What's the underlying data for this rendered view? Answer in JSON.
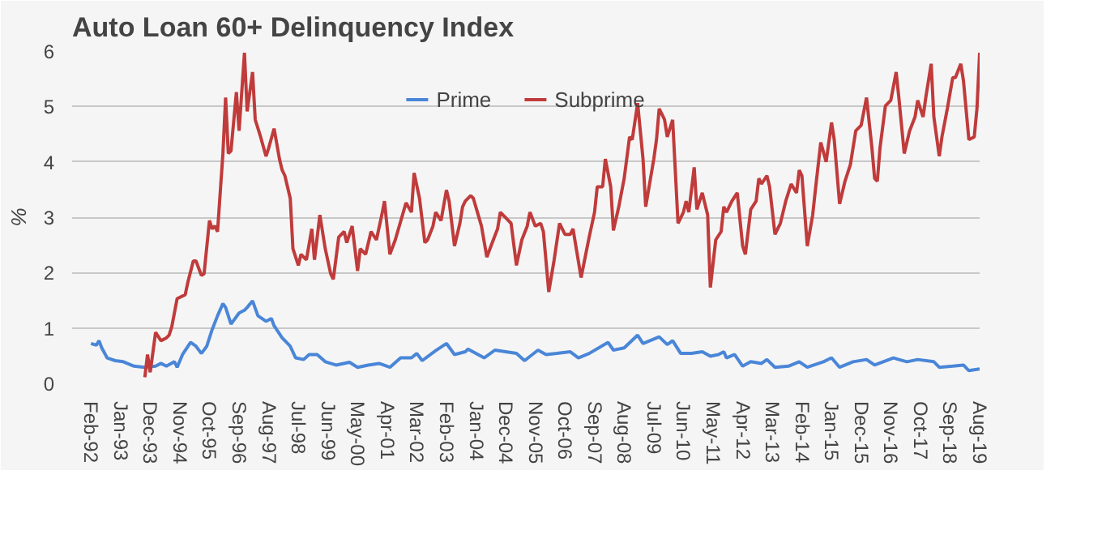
{
  "chart_data": {
    "type": "line",
    "title": "Auto Loan 60+ Delinquency Index",
    "ylabel": "%",
    "xlim": [
      "1991-07",
      "2019-08"
    ],
    "ylim": [
      0,
      6
    ],
    "yticks": [
      0,
      1,
      2,
      3,
      4,
      5,
      6
    ],
    "xticks": [
      {
        "value": "1992-02",
        "label": "Feb-92"
      },
      {
        "value": "1993-01",
        "label": "Jan-93"
      },
      {
        "value": "1993-12",
        "label": "Dec-93"
      },
      {
        "value": "1994-11",
        "label": "Nov-94"
      },
      {
        "value": "1995-10",
        "label": "Oct-95"
      },
      {
        "value": "1996-09",
        "label": "Sep-96"
      },
      {
        "value": "1997-08",
        "label": "Aug-97"
      },
      {
        "value": "1998-07",
        "label": "Jul-98"
      },
      {
        "value": "1999-06",
        "label": "Jun-99"
      },
      {
        "value": "2000-05",
        "label": "May-00"
      },
      {
        "value": "2001-04",
        "label": "Apr-01"
      },
      {
        "value": "2002-03",
        "label": "Mar-02"
      },
      {
        "value": "2003-02",
        "label": "Feb-03"
      },
      {
        "value": "2004-01",
        "label": "Jan-04"
      },
      {
        "value": "2004-12",
        "label": "Dec-04"
      },
      {
        "value": "2005-11",
        "label": "Nov-05"
      },
      {
        "value": "2006-10",
        "label": "Oct-06"
      },
      {
        "value": "2007-09",
        "label": "Sep-07"
      },
      {
        "value": "2008-08",
        "label": "Aug-08"
      },
      {
        "value": "2009-07",
        "label": "Jul-09"
      },
      {
        "value": "2010-06",
        "label": "Jun-10"
      },
      {
        "value": "2011-05",
        "label": "May-11"
      },
      {
        "value": "2012-04",
        "label": "Apr-12"
      },
      {
        "value": "2013-03",
        "label": "Mar-13"
      },
      {
        "value": "2014-02",
        "label": "Feb-14"
      },
      {
        "value": "2015-01",
        "label": "Jan-15"
      },
      {
        "value": "2015-12",
        "label": "Dec-15"
      },
      {
        "value": "2016-11",
        "label": "Nov-16"
      },
      {
        "value": "2017-10",
        "label": "Oct-17"
      },
      {
        "value": "2018-09",
        "label": "Sep-18"
      },
      {
        "value": "2019-08",
        "label": "Aug-19"
      }
    ],
    "grid": "y",
    "legend": "top",
    "marker": "none",
    "line_style": "solid",
    "series": [
      {
        "name": "Prime",
        "color": "#4a86d8",
        "x": [
          "1992-02",
          "1992-04",
          "1992-05",
          "1992-06",
          "1992-08",
          "1992-11",
          "1993-02",
          "1993-06",
          "1993-10",
          "1994-02",
          "1994-04",
          "1994-06",
          "1994-09",
          "1994-10",
          "1994-12",
          "1995-03",
          "1995-05",
          "1995-07",
          "1995-09",
          "1995-11",
          "1996-01",
          "1996-03",
          "1996-04",
          "1996-06",
          "1996-09",
          "1996-11",
          "1996-12",
          "1997-02",
          "1997-04",
          "1997-07",
          "1997-09",
          "1997-10",
          "1998-01",
          "1998-04",
          "1998-06",
          "1998-09",
          "1998-11",
          "1999-02",
          "1999-05",
          "1999-09",
          "2000-02",
          "2000-05",
          "2000-09",
          "2001-01",
          "2001-05",
          "2001-09",
          "2002-01",
          "2002-03",
          "2002-05",
          "2002-10",
          "2003-02",
          "2003-05",
          "2003-09",
          "2003-10",
          "2004-04",
          "2004-08",
          "2004-12",
          "2005-04",
          "2005-07",
          "2005-12",
          "2006-03",
          "2006-07",
          "2006-12",
          "2007-03",
          "2007-07",
          "2008-02",
          "2008-04",
          "2008-08",
          "2009-01",
          "2009-03",
          "2009-09",
          "2009-12",
          "2010-02",
          "2010-05",
          "2010-09",
          "2011-01",
          "2011-04",
          "2011-07",
          "2011-09",
          "2011-10",
          "2012-01",
          "2012-04",
          "2012-07",
          "2012-11",
          "2013-01",
          "2013-04",
          "2013-09",
          "2014-01",
          "2014-04",
          "2014-10",
          "2015-01",
          "2015-04",
          "2015-09",
          "2016-02",
          "2016-05",
          "2016-12",
          "2017-02",
          "2017-05",
          "2017-09",
          "2018-03",
          "2018-05",
          "2018-10",
          "2019-02",
          "2019-04",
          "2019-08"
        ],
        "values": [
          0.72,
          0.69,
          0.77,
          0.64,
          0.46,
          0.41,
          0.39,
          0.31,
          0.29,
          0.31,
          0.36,
          0.31,
          0.39,
          0.29,
          0.52,
          0.74,
          0.67,
          0.54,
          0.67,
          0.97,
          1.22,
          1.44,
          1.37,
          1.07,
          1.27,
          1.32,
          1.37,
          1.49,
          1.22,
          1.12,
          1.17,
          1.04,
          0.82,
          0.67,
          0.46,
          0.43,
          0.52,
          0.52,
          0.39,
          0.33,
          0.38,
          0.29,
          0.33,
          0.36,
          0.29,
          0.46,
          0.46,
          0.54,
          0.41,
          0.59,
          0.72,
          0.52,
          0.57,
          0.62,
          0.46,
          0.6,
          0.57,
          0.54,
          0.41,
          0.6,
          0.52,
          0.54,
          0.57,
          0.46,
          0.54,
          0.74,
          0.6,
          0.64,
          0.87,
          0.72,
          0.84,
          0.7,
          0.77,
          0.54,
          0.54,
          0.57,
          0.49,
          0.52,
          0.57,
          0.46,
          0.52,
          0.31,
          0.39,
          0.36,
          0.43,
          0.29,
          0.31,
          0.39,
          0.29,
          0.39,
          0.46,
          0.29,
          0.39,
          0.43,
          0.33,
          0.46,
          0.43,
          0.39,
          0.43,
          0.39,
          0.29,
          0.31,
          0.33,
          0.23,
          0.26
        ]
      },
      {
        "name": "Subprime",
        "color": "#c03b3b",
        "x": [
          "1993-10",
          "1993-11",
          "1993-12",
          "1994-02",
          "1994-04",
          "1994-06",
          "1994-07",
          "1994-08",
          "1994-10",
          "1995-01",
          "1995-02",
          "1995-04",
          "1995-05",
          "1995-07",
          "1995-08",
          "1995-10",
          "1995-11",
          "1995-12",
          "1996-01",
          "1996-03",
          "1996-04",
          "1996-05",
          "1996-06",
          "1996-08",
          "1996-09",
          "1996-11",
          "1996-12",
          "1997-02",
          "1997-03",
          "1997-05",
          "1997-07",
          "1997-08",
          "1997-10",
          "1997-12",
          "1998-01",
          "1998-02",
          "1998-04",
          "1998-05",
          "1998-07",
          "1998-08",
          "1998-10",
          "1998-12",
          "1999-01",
          "1999-03",
          "1999-05",
          "1999-07",
          "1999-08",
          "1999-10",
          "1999-12",
          "2000-01",
          "2000-03",
          "2000-05",
          "2000-06",
          "2000-08",
          "2000-10",
          "2000-12",
          "2001-02",
          "2001-03",
          "2001-05",
          "2001-07",
          "2001-11",
          "2002-01",
          "2002-02",
          "2002-04",
          "2002-06",
          "2002-07",
          "2002-09",
          "2002-10",
          "2002-12",
          "2003-02",
          "2003-03",
          "2003-05",
          "2003-07",
          "2003-08",
          "2003-09",
          "2003-11",
          "2003-12",
          "2004-03",
          "2004-05",
          "2004-07",
          "2004-09",
          "2004-10",
          "2004-12",
          "2005-02",
          "2005-04",
          "2005-06",
          "2005-08",
          "2005-09",
          "2005-11",
          "2006-01",
          "2006-02",
          "2006-04",
          "2006-06",
          "2006-08",
          "2006-10",
          "2006-12",
          "2007-01",
          "2007-04",
          "2007-07",
          "2007-09",
          "2007-10",
          "2007-12",
          "2008-01",
          "2008-03",
          "2008-04",
          "2008-06",
          "2008-08",
          "2008-10",
          "2008-11",
          "2009-01",
          "2009-03",
          "2009-04",
          "2009-07",
          "2009-08",
          "2009-09",
          "2009-11",
          "2009-12",
          "2010-02",
          "2010-04",
          "2010-06",
          "2010-07",
          "2010-08",
          "2010-10",
          "2010-11",
          "2011-01",
          "2011-03",
          "2011-04",
          "2011-06",
          "2011-08",
          "2011-09",
          "2011-10",
          "2011-12",
          "2012-02",
          "2012-04",
          "2012-05",
          "2012-07",
          "2012-09",
          "2012-10",
          "2012-11",
          "2013-01",
          "2013-02",
          "2013-04",
          "2013-06",
          "2013-08",
          "2013-10",
          "2013-12",
          "2014-01",
          "2014-02",
          "2014-04",
          "2014-06",
          "2014-07",
          "2014-09",
          "2014-11",
          "2015-01",
          "2015-02",
          "2015-04",
          "2015-06",
          "2015-08",
          "2015-10",
          "2015-12",
          "2016-02",
          "2016-04",
          "2016-05",
          "2016-06",
          "2016-07",
          "2016-09",
          "2016-11",
          "2017-01",
          "2017-02",
          "2017-04",
          "2017-06",
          "2017-08",
          "2017-09",
          "2017-11",
          "2017-12",
          "2018-02",
          "2018-03",
          "2018-05",
          "2018-06",
          "2018-08",
          "2018-10",
          "2018-11",
          "2019-01",
          "2019-02",
          "2019-04",
          "2019-06",
          "2019-07",
          "2019-08"
        ],
        "values": [
          0.11,
          0.52,
          0.2,
          0.92,
          0.77,
          0.82,
          0.87,
          1.02,
          1.53,
          1.6,
          1.83,
          2.21,
          2.21,
          1.95,
          1.98,
          2.94,
          2.79,
          2.84,
          2.74,
          4.15,
          5.16,
          4.15,
          4.2,
          5.26,
          4.56,
          5.97,
          4.91,
          5.62,
          4.76,
          4.45,
          4.1,
          4.25,
          4.6,
          4.05,
          3.85,
          3.75,
          3.34,
          2.43,
          2.13,
          2.33,
          2.23,
          2.79,
          2.23,
          3.04,
          2.43,
          1.98,
          1.88,
          2.64,
          2.74,
          2.54,
          2.84,
          2.03,
          2.43,
          2.33,
          2.74,
          2.59,
          3.04,
          3.29,
          2.33,
          2.59,
          3.26,
          3.09,
          3.8,
          3.34,
          2.54,
          2.59,
          2.84,
          3.09,
          2.94,
          3.49,
          3.29,
          2.48,
          2.89,
          3.19,
          3.29,
          3.39,
          3.34,
          2.84,
          2.28,
          2.54,
          2.79,
          3.09,
          2.99,
          2.89,
          2.13,
          2.59,
          2.84,
          3.09,
          2.84,
          2.89,
          2.74,
          1.65,
          2.23,
          2.89,
          2.69,
          2.69,
          2.79,
          1.91,
          2.64,
          3.09,
          3.55,
          3.55,
          4.05,
          3.55,
          2.76,
          3.19,
          3.7,
          4.45,
          4.4,
          5.06,
          4.05,
          3.19,
          4.05,
          4.4,
          4.96,
          4.76,
          4.45,
          4.76,
          2.89,
          3.09,
          3.29,
          3.09,
          3.9,
          3.14,
          3.44,
          3.04,
          1.73,
          2.59,
          2.74,
          3.19,
          3.09,
          3.29,
          3.44,
          2.48,
          2.33,
          3.14,
          3.29,
          3.7,
          3.6,
          3.75,
          3.55,
          2.69,
          2.89,
          3.29,
          3.6,
          3.44,
          3.85,
          3.75,
          2.48,
          3.04,
          3.49,
          4.35,
          4.0,
          4.71,
          4.4,
          3.24,
          3.65,
          3.95,
          4.56,
          4.66,
          5.16,
          4.25,
          3.7,
          3.65,
          4.25,
          5.01,
          5.11,
          5.62,
          5.16,
          4.15,
          4.56,
          4.81,
          5.11,
          4.81,
          5.16,
          5.77,
          4.81,
          4.1,
          4.45,
          4.96,
          5.52,
          5.52,
          5.77,
          5.46,
          4.4,
          4.45,
          4.96,
          5.97
        ]
      }
    ]
  }
}
